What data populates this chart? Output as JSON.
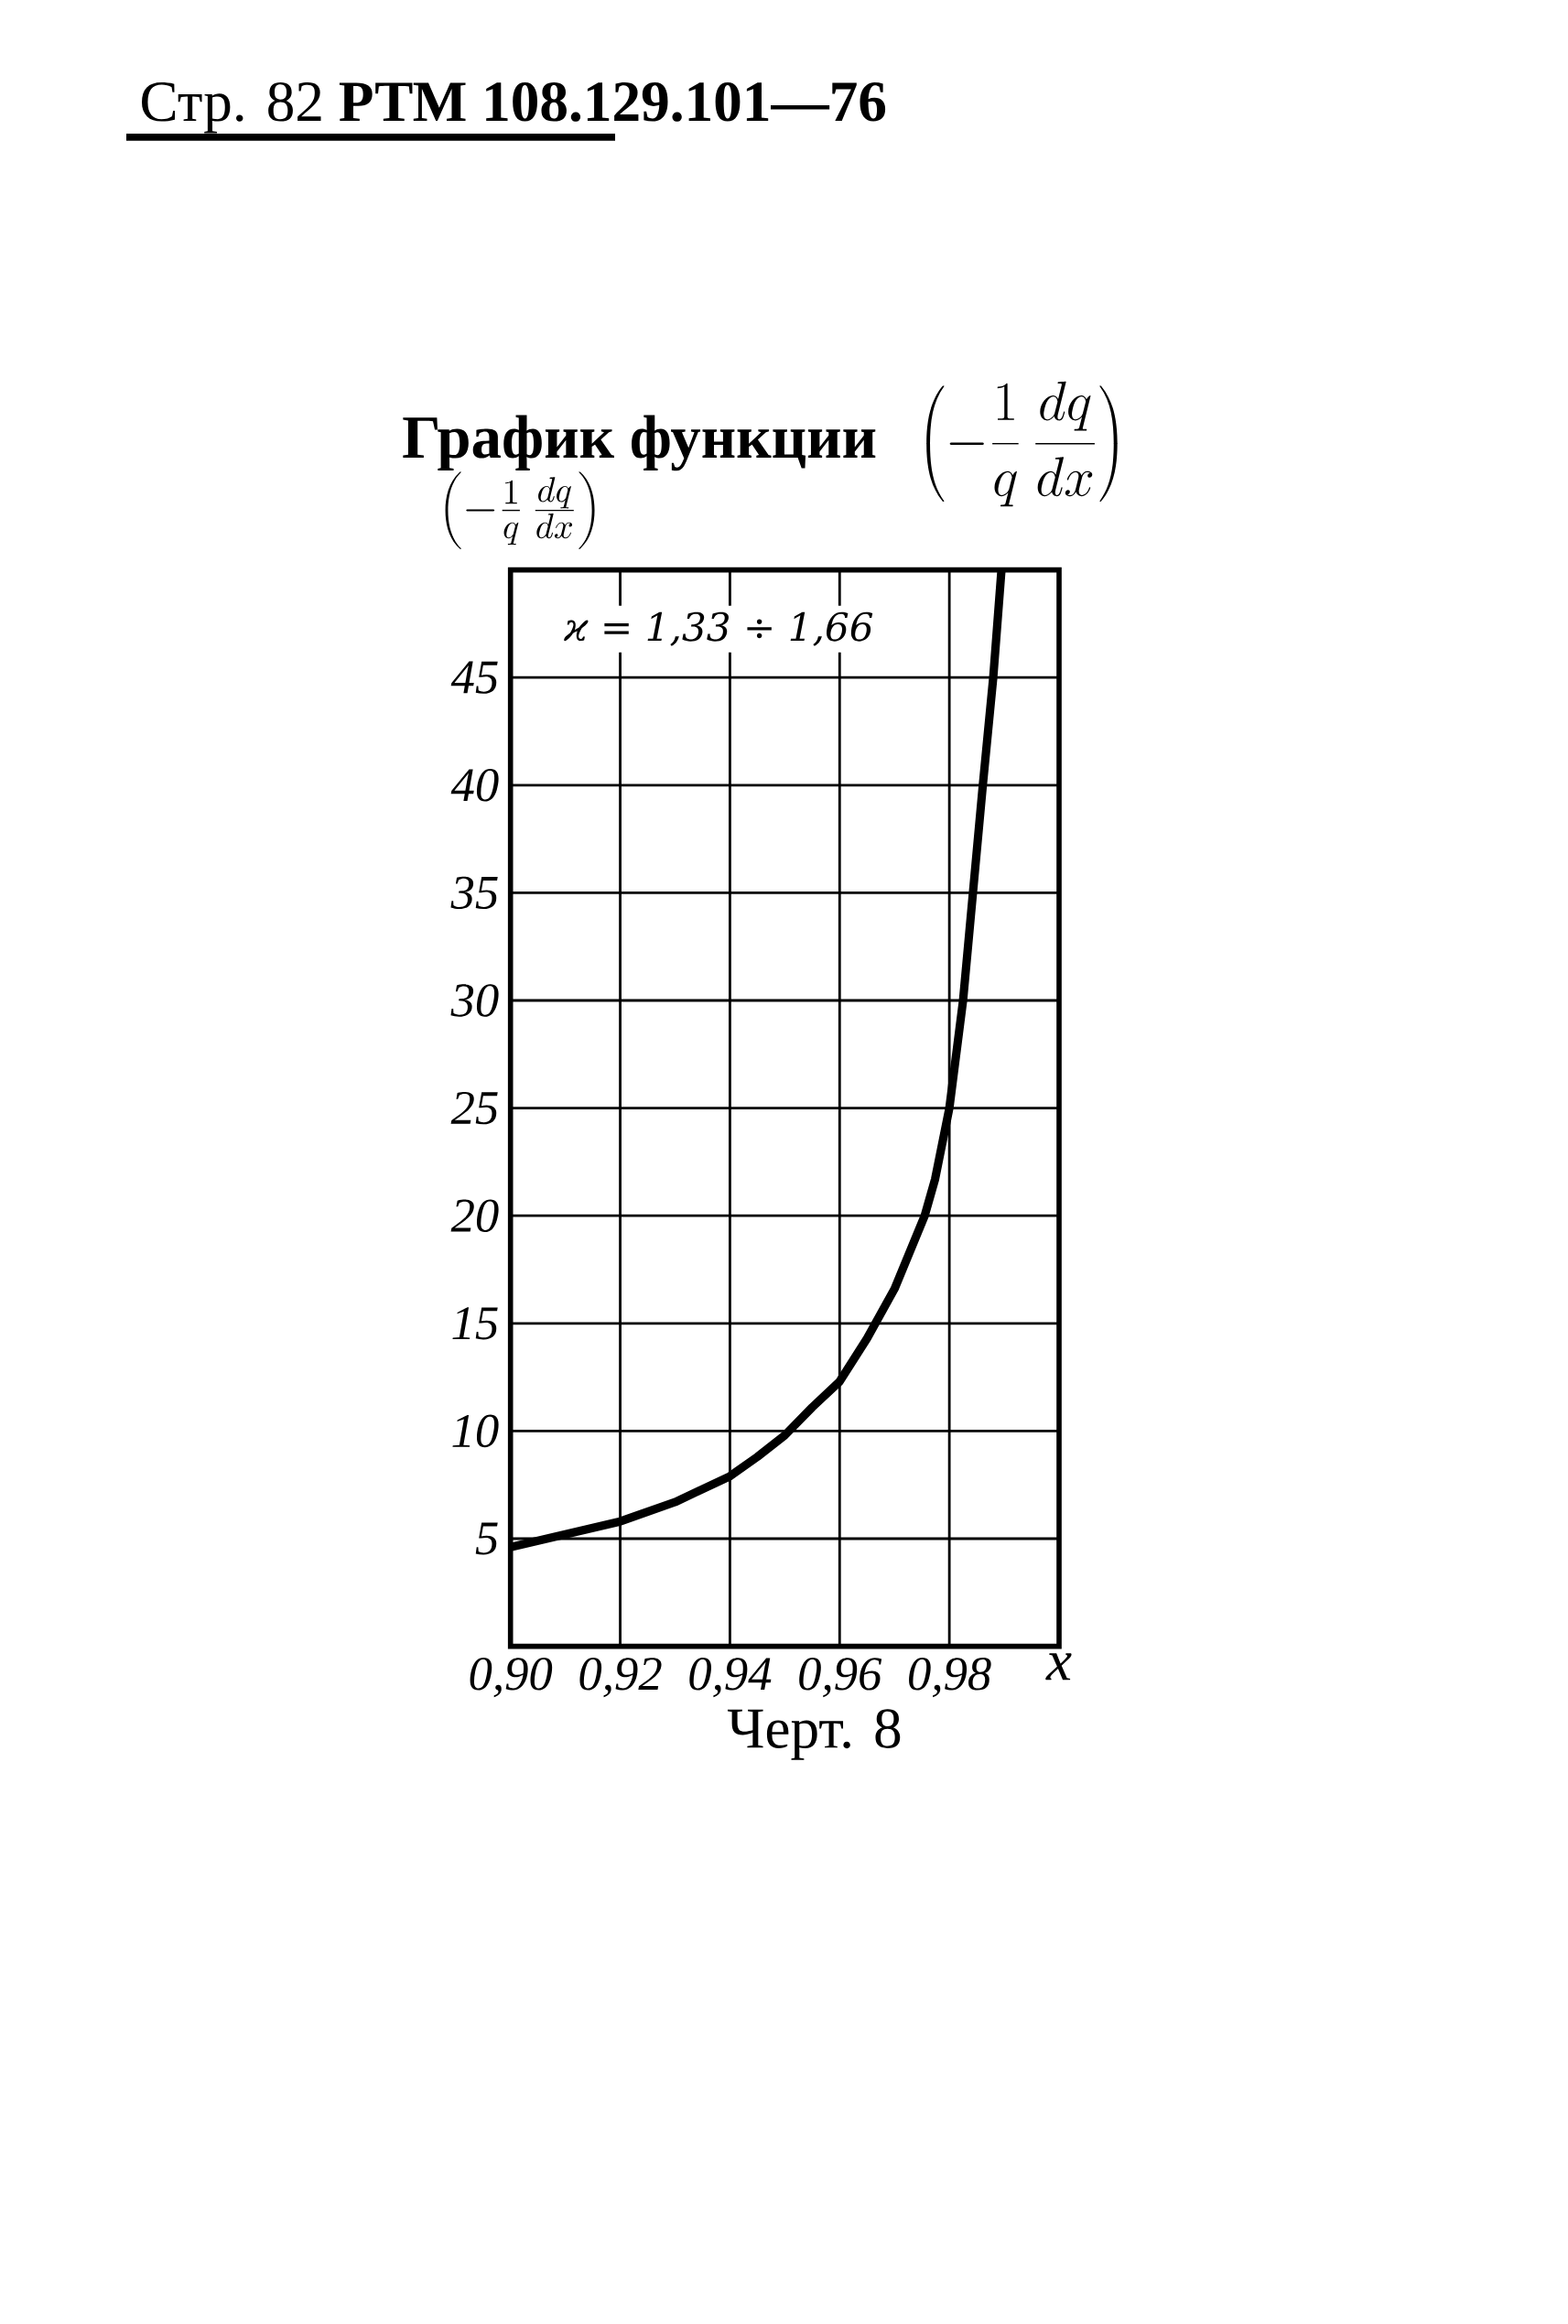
{
  "chart_data": {
    "type": "line",
    "title": "\\mbox{\\bfseries График функции}\\;\\;\\left(-\\frac{1}{q}\\,\\frac{dq}{dx}\\right)",
    "ylabel": "\\left(-\\frac{1}{q}\\,\\frac{dq}{dx}\\right)",
    "xlabel": "x",
    "annotations": [
      "Стр. 82   **РТМ 108.129.101—76**",
      "ϰ = 1,33 ÷ 1,66",
      "Черт. 8"
    ],
    "x": [
      0.9,
      0.91,
      0.92,
      0.93,
      0.94,
      0.945,
      0.95,
      0.955,
      0.96,
      0.965,
      0.97,
      0.9755,
      0.9774,
      0.98,
      0.9825,
      0.9843,
      0.9861,
      0.988,
      0.9895
    ],
    "values": [
      4.6,
      5.2,
      5.8,
      6.7,
      7.9,
      8.8,
      9.8,
      11.1,
      12.3,
      14.3,
      16.6,
      20,
      21.7,
      25,
      30,
      35,
      40,
      45,
      50
    ],
    "color": "#000000",
    "xlim": [
      0.9,
      1.0
    ],
    "ylim": [
      0,
      50
    ],
    "xticks": [
      {
        "value": 0.9,
        "label": "0,90"
      },
      {
        "value": 0.92,
        "label": "0,92"
      },
      {
        "value": 0.94,
        "label": "0,94"
      },
      {
        "value": 0.96,
        "label": "0,96"
      },
      {
        "value": 0.98,
        "label": "0,98"
      }
    ],
    "yticks": [
      5,
      10,
      15,
      20,
      25,
      30,
      35,
      40,
      45
    ],
    "grid": true
  }
}
